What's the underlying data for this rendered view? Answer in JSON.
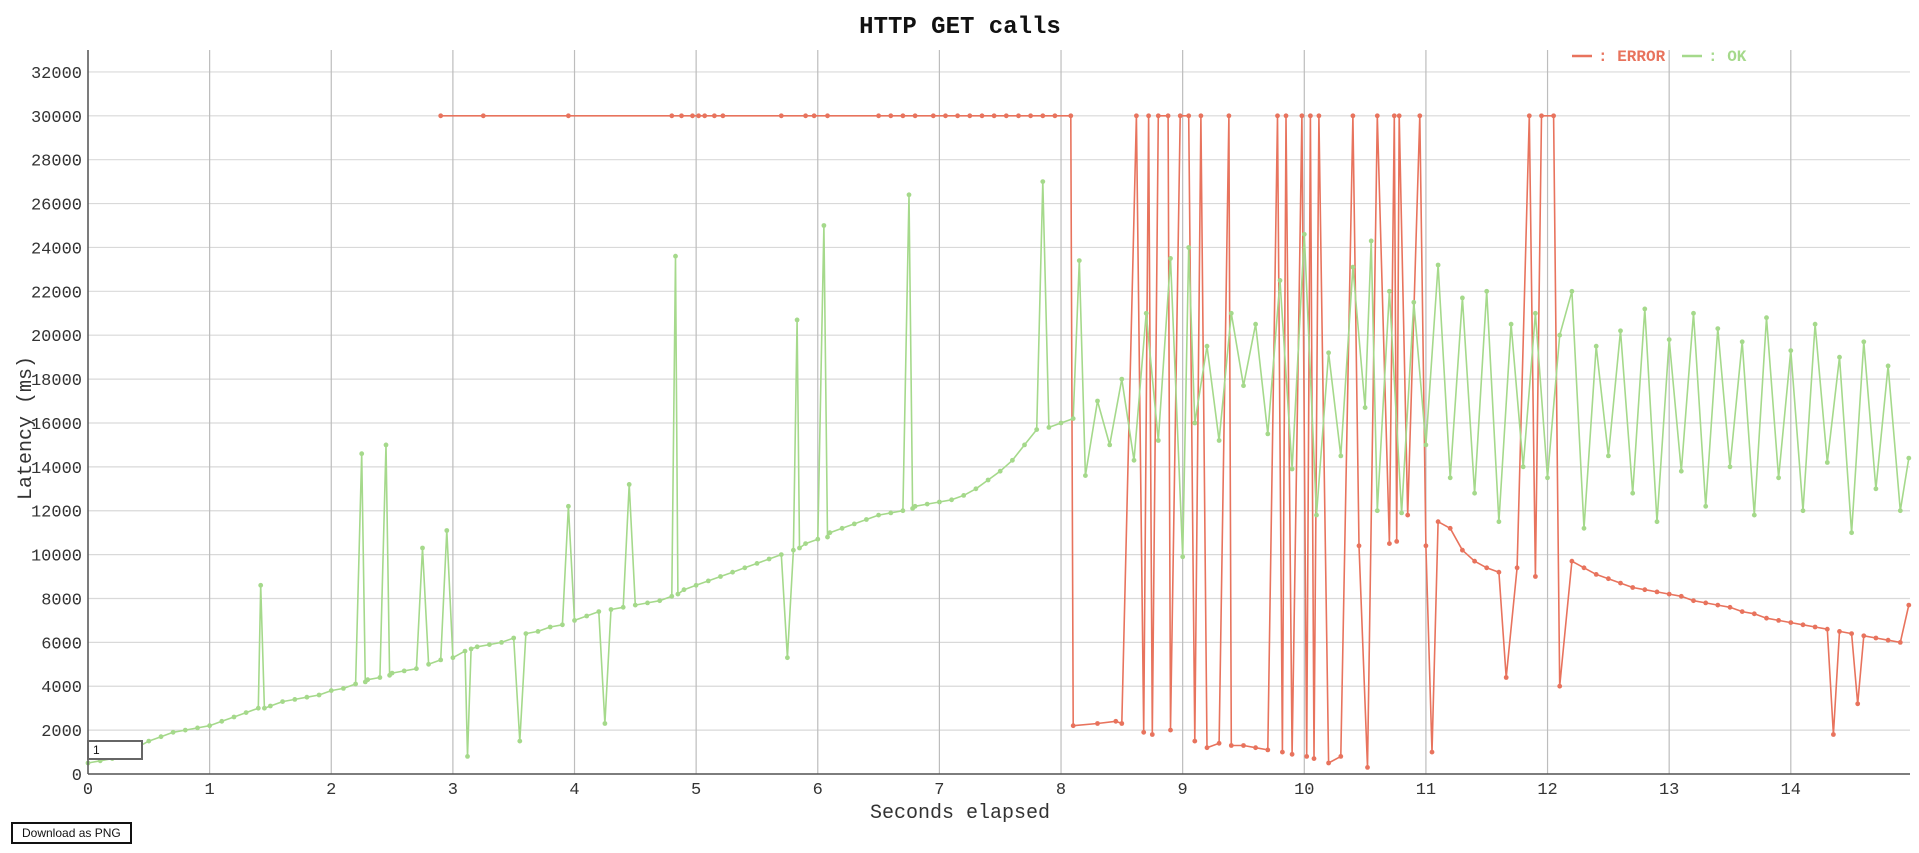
{
  "chart_data": {
    "type": "line",
    "title": "HTTP GET calls",
    "xlabel": "Seconds elapsed",
    "ylabel": "Latency (ms)",
    "xlim": [
      0,
      14.98
    ],
    "ylim": [
      0,
      33000
    ],
    "x_ticks": [
      "0",
      "1",
      "2",
      "3",
      "4",
      "5",
      "6",
      "7",
      "8",
      "9",
      "10",
      "11",
      "12",
      "13",
      "14"
    ],
    "y_ticks": [
      "0",
      "2000",
      "4000",
      "6000",
      "8000",
      "10000",
      "12000",
      "14000",
      "16000",
      "18000",
      "20000",
      "22000",
      "24000",
      "26000",
      "28000",
      "30000",
      "32000"
    ],
    "grid": true,
    "legend_position": "top-right",
    "series": [
      {
        "name": "ERROR",
        "color": "#e8735d",
        "points": [
          [
            2.9,
            30000
          ],
          [
            3.25,
            30000
          ],
          [
            3.95,
            30000
          ],
          [
            4.8,
            30000
          ],
          [
            4.88,
            30000
          ],
          [
            4.97,
            30000
          ],
          [
            5.02,
            30000
          ],
          [
            5.07,
            30000
          ],
          [
            5.15,
            30000
          ],
          [
            5.22,
            30000
          ],
          [
            5.7,
            30000
          ],
          [
            5.9,
            30000
          ],
          [
            5.97,
            30000
          ],
          [
            6.08,
            30000
          ],
          [
            6.5,
            30000
          ],
          [
            6.6,
            30000
          ],
          [
            6.7,
            30000
          ],
          [
            6.8,
            30000
          ],
          [
            6.95,
            30000
          ],
          [
            7.05,
            30000
          ],
          [
            7.15,
            30000
          ],
          [
            7.25,
            30000
          ],
          [
            7.35,
            30000
          ],
          [
            7.45,
            30000
          ],
          [
            7.55,
            30000
          ],
          [
            7.65,
            30000
          ],
          [
            7.75,
            30000
          ],
          [
            7.85,
            30000
          ],
          [
            7.95,
            30000
          ],
          [
            8.08,
            30000
          ],
          [
            8.1,
            2200
          ],
          [
            8.3,
            2300
          ],
          [
            8.45,
            2400
          ],
          [
            8.5,
            2300
          ],
          [
            8.62,
            30000
          ],
          [
            8.68,
            1900
          ],
          [
            8.72,
            30000
          ],
          [
            8.75,
            1800
          ],
          [
            8.8,
            30000
          ],
          [
            8.88,
            30000
          ],
          [
            8.9,
            2000
          ],
          [
            8.98,
            30000
          ],
          [
            9.05,
            30000
          ],
          [
            9.1,
            1500
          ],
          [
            9.15,
            30000
          ],
          [
            9.2,
            1200
          ],
          [
            9.3,
            1400
          ],
          [
            9.38,
            30000
          ],
          [
            9.4,
            1300
          ],
          [
            9.5,
            1300
          ],
          [
            9.6,
            1200
          ],
          [
            9.7,
            1100
          ],
          [
            9.78,
            30000
          ],
          [
            9.82,
            1000
          ],
          [
            9.85,
            30000
          ],
          [
            9.9,
            900
          ],
          [
            9.98,
            30000
          ],
          [
            10.02,
            800
          ],
          [
            10.05,
            30000
          ],
          [
            10.08,
            700
          ],
          [
            10.12,
            30000
          ],
          [
            10.2,
            500
          ],
          [
            10.3,
            800
          ],
          [
            10.4,
            30000
          ],
          [
            10.45,
            10400
          ],
          [
            10.52,
            300
          ],
          [
            10.6,
            30000
          ],
          [
            10.7,
            10500
          ],
          [
            10.74,
            30000
          ],
          [
            10.76,
            10600
          ],
          [
            10.78,
            30000
          ],
          [
            10.85,
            11800
          ],
          [
            10.95,
            30000
          ],
          [
            11.0,
            10400
          ],
          [
            11.05,
            1000
          ],
          [
            11.1,
            11500
          ],
          [
            11.2,
            11200
          ],
          [
            11.3,
            10200
          ],
          [
            11.4,
            9700
          ],
          [
            11.5,
            9400
          ],
          [
            11.6,
            9200
          ],
          [
            11.66,
            4400
          ],
          [
            11.75,
            9400
          ],
          [
            11.85,
            30000
          ],
          [
            11.9,
            9000
          ],
          [
            11.95,
            30000
          ],
          [
            12.05,
            30000
          ],
          [
            12.1,
            4000
          ],
          [
            12.2,
            9700
          ],
          [
            12.3,
            9400
          ],
          [
            12.4,
            9100
          ],
          [
            12.5,
            8900
          ],
          [
            12.6,
            8700
          ],
          [
            12.7,
            8500
          ],
          [
            12.8,
            8400
          ],
          [
            12.9,
            8300
          ],
          [
            13.0,
            8200
          ],
          [
            13.1,
            8100
          ],
          [
            13.2,
            7900
          ],
          [
            13.3,
            7800
          ],
          [
            13.4,
            7700
          ],
          [
            13.5,
            7600
          ],
          [
            13.6,
            7400
          ],
          [
            13.7,
            7300
          ],
          [
            13.8,
            7100
          ],
          [
            13.9,
            7000
          ],
          [
            14.0,
            6900
          ],
          [
            14.1,
            6800
          ],
          [
            14.2,
            6700
          ],
          [
            14.3,
            6600
          ],
          [
            14.35,
            1800
          ],
          [
            14.4,
            6500
          ],
          [
            14.5,
            6400
          ],
          [
            14.55,
            3200
          ],
          [
            14.6,
            6300
          ],
          [
            14.7,
            6200
          ],
          [
            14.8,
            6100
          ],
          [
            14.9,
            6000
          ],
          [
            14.97,
            7700
          ]
        ]
      },
      {
        "name": "OK",
        "color": "#a5d98b",
        "points": [
          [
            0.0,
            500
          ],
          [
            0.1,
            600
          ],
          [
            0.2,
            700
          ],
          [
            0.3,
            900
          ],
          [
            0.4,
            1200
          ],
          [
            0.5,
            1500
          ],
          [
            0.6,
            1700
          ],
          [
            0.7,
            1900
          ],
          [
            0.8,
            2000
          ],
          [
            0.9,
            2100
          ],
          [
            1.0,
            2200
          ],
          [
            1.1,
            2400
          ],
          [
            1.2,
            2600
          ],
          [
            1.3,
            2800
          ],
          [
            1.4,
            3000
          ],
          [
            1.42,
            8600
          ],
          [
            1.45,
            3000
          ],
          [
            1.5,
            3100
          ],
          [
            1.6,
            3300
          ],
          [
            1.7,
            3400
          ],
          [
            1.8,
            3500
          ],
          [
            1.9,
            3600
          ],
          [
            2.0,
            3800
          ],
          [
            2.1,
            3900
          ],
          [
            2.2,
            4100
          ],
          [
            2.25,
            14600
          ],
          [
            2.28,
            4200
          ],
          [
            2.3,
            4300
          ],
          [
            2.4,
            4400
          ],
          [
            2.45,
            15000
          ],
          [
            2.48,
            4500
          ],
          [
            2.5,
            4600
          ],
          [
            2.6,
            4700
          ],
          [
            2.7,
            4800
          ],
          [
            2.75,
            10300
          ],
          [
            2.8,
            5000
          ],
          [
            2.9,
            5200
          ],
          [
            2.95,
            11100
          ],
          [
            3.0,
            5300
          ],
          [
            3.1,
            5600
          ],
          [
            3.12,
            800
          ],
          [
            3.15,
            5700
          ],
          [
            3.2,
            5800
          ],
          [
            3.3,
            5900
          ],
          [
            3.4,
            6000
          ],
          [
            3.5,
            6200
          ],
          [
            3.55,
            1500
          ],
          [
            3.6,
            6400
          ],
          [
            3.7,
            6500
          ],
          [
            3.8,
            6700
          ],
          [
            3.9,
            6800
          ],
          [
            3.95,
            12200
          ],
          [
            4.0,
            7000
          ],
          [
            4.1,
            7200
          ],
          [
            4.2,
            7400
          ],
          [
            4.25,
            2300
          ],
          [
            4.3,
            7500
          ],
          [
            4.4,
            7600
          ],
          [
            4.45,
            13200
          ],
          [
            4.5,
            7700
          ],
          [
            4.6,
            7800
          ],
          [
            4.7,
            7900
          ],
          [
            4.8,
            8100
          ],
          [
            4.83,
            23600
          ],
          [
            4.85,
            8200
          ],
          [
            4.9,
            8400
          ],
          [
            5.0,
            8600
          ],
          [
            5.1,
            8800
          ],
          [
            5.2,
            9000
          ],
          [
            5.3,
            9200
          ],
          [
            5.4,
            9400
          ],
          [
            5.5,
            9600
          ],
          [
            5.6,
            9800
          ],
          [
            5.7,
            10000
          ],
          [
            5.75,
            5300
          ],
          [
            5.8,
            10200
          ],
          [
            5.83,
            20700
          ],
          [
            5.85,
            10300
          ],
          [
            5.9,
            10500
          ],
          [
            6.0,
            10700
          ],
          [
            6.05,
            25000
          ],
          [
            6.08,
            10800
          ],
          [
            6.1,
            11000
          ],
          [
            6.2,
            11200
          ],
          [
            6.3,
            11400
          ],
          [
            6.4,
            11600
          ],
          [
            6.5,
            11800
          ],
          [
            6.6,
            11900
          ],
          [
            6.7,
            12000
          ],
          [
            6.75,
            26400
          ],
          [
            6.78,
            12100
          ],
          [
            6.8,
            12200
          ],
          [
            6.9,
            12300
          ],
          [
            7.0,
            12400
          ],
          [
            7.1,
            12500
          ],
          [
            7.2,
            12700
          ],
          [
            7.3,
            13000
          ],
          [
            7.4,
            13400
          ],
          [
            7.5,
            13800
          ],
          [
            7.6,
            14300
          ],
          [
            7.7,
            15000
          ],
          [
            7.8,
            15700
          ],
          [
            7.85,
            27000
          ],
          [
            7.9,
            15800
          ],
          [
            8.0,
            16000
          ],
          [
            8.1,
            16200
          ],
          [
            8.15,
            23400
          ],
          [
            8.2,
            13600
          ],
          [
            8.3,
            17000
          ],
          [
            8.4,
            15000
          ],
          [
            8.5,
            18000
          ],
          [
            8.6,
            14300
          ],
          [
            8.7,
            21000
          ],
          [
            8.8,
            15200
          ],
          [
            8.9,
            23500
          ],
          [
            9.0,
            9900
          ],
          [
            9.05,
            24000
          ],
          [
            9.1,
            16000
          ],
          [
            9.2,
            19500
          ],
          [
            9.3,
            15200
          ],
          [
            9.4,
            21000
          ],
          [
            9.5,
            17700
          ],
          [
            9.6,
            20500
          ],
          [
            9.7,
            15500
          ],
          [
            9.8,
            22500
          ],
          [
            9.9,
            13900
          ],
          [
            10.0,
            24600
          ],
          [
            10.1,
            11800
          ],
          [
            10.2,
            19200
          ],
          [
            10.3,
            14500
          ],
          [
            10.4,
            23100
          ],
          [
            10.5,
            16700
          ],
          [
            10.55,
            24300
          ],
          [
            10.6,
            12000
          ],
          [
            10.7,
            22000
          ],
          [
            10.8,
            11900
          ],
          [
            10.9,
            21500
          ],
          [
            11.0,
            15000
          ],
          [
            11.1,
            23200
          ],
          [
            11.2,
            13500
          ],
          [
            11.3,
            21700
          ],
          [
            11.4,
            12800
          ],
          [
            11.5,
            22000
          ],
          [
            11.6,
            11500
          ],
          [
            11.7,
            20500
          ],
          [
            11.8,
            14000
          ],
          [
            11.9,
            21000
          ],
          [
            12.0,
            13500
          ],
          [
            12.1,
            20000
          ],
          [
            12.2,
            22000
          ],
          [
            12.3,
            11200
          ],
          [
            12.4,
            19500
          ],
          [
            12.5,
            14500
          ],
          [
            12.6,
            20200
          ],
          [
            12.7,
            12800
          ],
          [
            12.8,
            21200
          ],
          [
            12.9,
            11500
          ],
          [
            13.0,
            19800
          ],
          [
            13.1,
            13800
          ],
          [
            13.2,
            21000
          ],
          [
            13.3,
            12200
          ],
          [
            13.4,
            20300
          ],
          [
            13.5,
            14000
          ],
          [
            13.6,
            19700
          ],
          [
            13.7,
            11800
          ],
          [
            13.8,
            20800
          ],
          [
            13.9,
            13500
          ],
          [
            14.0,
            19300
          ],
          [
            14.1,
            12000
          ],
          [
            14.2,
            20500
          ],
          [
            14.3,
            14200
          ],
          [
            14.4,
            19000
          ],
          [
            14.5,
            11000
          ],
          [
            14.6,
            19700
          ],
          [
            14.7,
            13000
          ],
          [
            14.8,
            18600
          ],
          [
            14.9,
            12000
          ],
          [
            14.97,
            14400
          ]
        ]
      }
    ]
  },
  "ui": {
    "download_label": "Download as PNG",
    "page_input_value": "1"
  }
}
